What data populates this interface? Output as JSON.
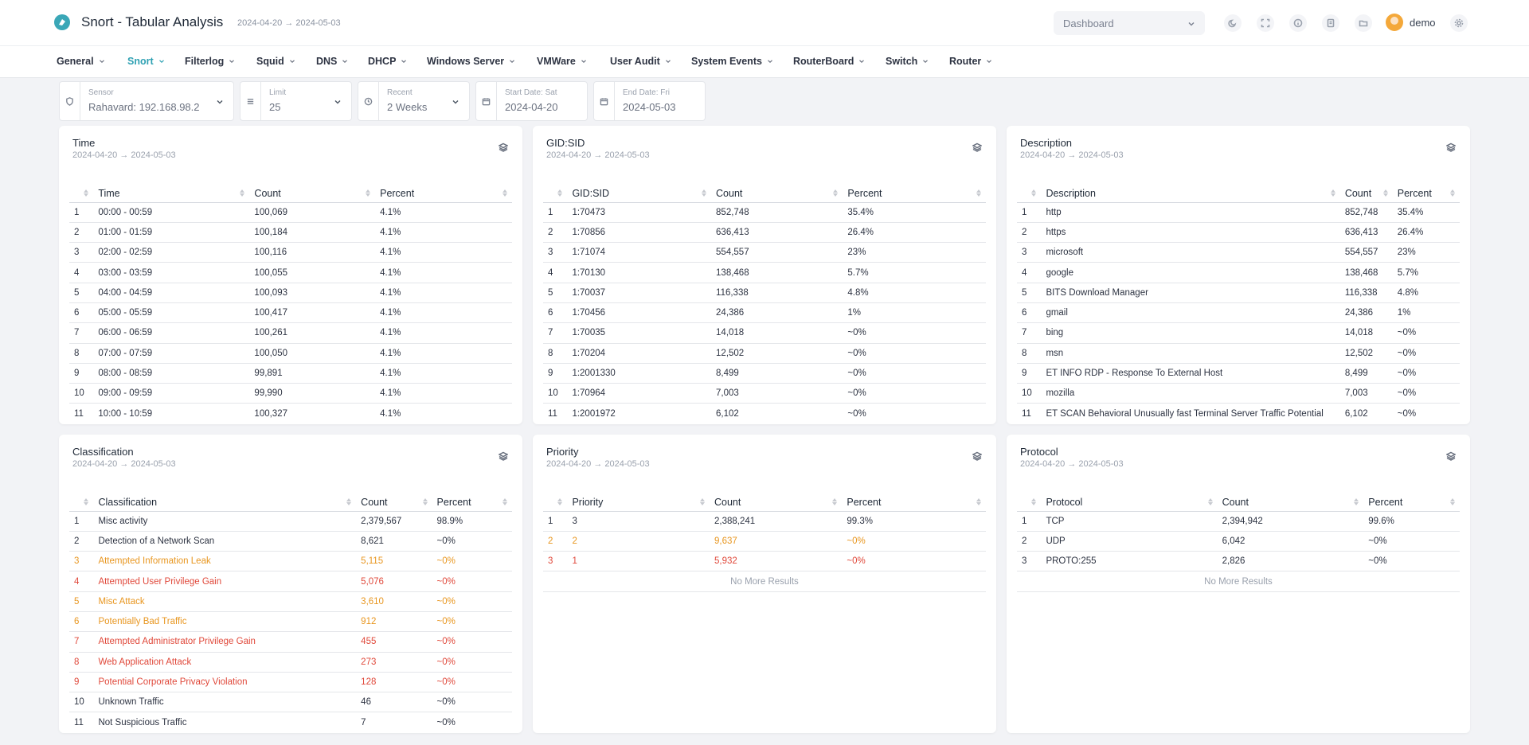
{
  "header": {
    "title": "Snort - Tabular Analysis",
    "range": "2024-04-20 → 2024-05-03",
    "dashboard_select": "Dashboard",
    "username": "demo",
    "icons": [
      "moon-icon",
      "fullscreen-icon",
      "info-icon",
      "document-icon",
      "folder-icon",
      "settings-icon"
    ]
  },
  "nav": [
    {
      "label": "General"
    },
    {
      "label": "Snort",
      "active": true
    },
    {
      "label": "Filterlog"
    },
    {
      "label": "Squid"
    },
    {
      "label": "DNS"
    },
    {
      "label": "DHCP"
    },
    {
      "label": "Windows Server"
    },
    {
      "label": "VMWare"
    },
    {
      "label": "User Audit"
    },
    {
      "label": "System Events"
    },
    {
      "label": "RouterBoard"
    },
    {
      "label": "Switch"
    },
    {
      "label": "Router"
    }
  ],
  "filters": {
    "sensor": {
      "label": "Sensor",
      "value": "Rahavard: 192.168.98.2"
    },
    "limit": {
      "label": "Limit",
      "value": "25"
    },
    "recent": {
      "label": "Recent",
      "value": "2 Weeks"
    },
    "start": {
      "label": "Start Date: Sat",
      "value": "2024-04-20"
    },
    "end": {
      "label": "End Date: Fri",
      "value": "2024-05-03"
    }
  },
  "cards": {
    "time": {
      "title": "Time",
      "range": "2024-04-20 → 2024-05-03",
      "columns": [
        "",
        "Time",
        "Count",
        "Percent"
      ],
      "rows": [
        [
          "1",
          "00:00 - 00:59",
          "100,069",
          "4.1%"
        ],
        [
          "2",
          "01:00 - 01:59",
          "100,184",
          "4.1%"
        ],
        [
          "3",
          "02:00 - 02:59",
          "100,116",
          "4.1%"
        ],
        [
          "4",
          "03:00 - 03:59",
          "100,055",
          "4.1%"
        ],
        [
          "5",
          "04:00 - 04:59",
          "100,093",
          "4.1%"
        ],
        [
          "6",
          "05:00 - 05:59",
          "100,417",
          "4.1%"
        ],
        [
          "7",
          "06:00 - 06:59",
          "100,261",
          "4.1%"
        ],
        [
          "8",
          "07:00 - 07:59",
          "100,050",
          "4.1%"
        ],
        [
          "9",
          "08:00 - 08:59",
          "99,891",
          "4.1%"
        ],
        [
          "10",
          "09:00 - 09:59",
          "99,990",
          "4.1%"
        ],
        [
          "11",
          "10:00 - 10:59",
          "100,327",
          "4.1%"
        ]
      ]
    },
    "gidsid": {
      "title": "GID:SID",
      "range": "2024-04-20 → 2024-05-03",
      "columns": [
        "",
        "GID:SID",
        "Count",
        "Percent"
      ],
      "rows": [
        [
          "1",
          "1:70473",
          "852,748",
          "35.4%"
        ],
        [
          "2",
          "1:70856",
          "636,413",
          "26.4%"
        ],
        [
          "3",
          "1:71074",
          "554,557",
          "23%"
        ],
        [
          "4",
          "1:70130",
          "138,468",
          "5.7%"
        ],
        [
          "5",
          "1:70037",
          "116,338",
          "4.8%"
        ],
        [
          "6",
          "1:70456",
          "24,386",
          "1%"
        ],
        [
          "7",
          "1:70035",
          "14,018",
          "~0%"
        ],
        [
          "8",
          "1:70204",
          "12,502",
          "~0%"
        ],
        [
          "9",
          "1:2001330",
          "8,499",
          "~0%"
        ],
        [
          "10",
          "1:70964",
          "7,003",
          "~0%"
        ],
        [
          "11",
          "1:2001972",
          "6,102",
          "~0%"
        ]
      ]
    },
    "description": {
      "title": "Description",
      "range": "2024-04-20 → 2024-05-03",
      "columns": [
        "",
        "Description",
        "Count",
        "Percent"
      ],
      "rows": [
        [
          "1",
          "http",
          "852,748",
          "35.4%"
        ],
        [
          "2",
          "https",
          "636,413",
          "26.4%"
        ],
        [
          "3",
          "microsoft",
          "554,557",
          "23%"
        ],
        [
          "4",
          "google",
          "138,468",
          "5.7%"
        ],
        [
          "5",
          "BITS Download Manager",
          "116,338",
          "4.8%"
        ],
        [
          "6",
          "gmail",
          "24,386",
          "1%"
        ],
        [
          "7",
          "bing",
          "14,018",
          "~0%"
        ],
        [
          "8",
          "msn",
          "12,502",
          "~0%"
        ],
        [
          "9",
          "ET INFO RDP - Response To External Host",
          "8,499",
          "~0%"
        ],
        [
          "10",
          "mozilla",
          "7,003",
          "~0%"
        ],
        [
          "11",
          "ET SCAN Behavioral Unusually fast Terminal Server Traffic Potential",
          "6,102",
          "~0%"
        ]
      ]
    },
    "classification": {
      "title": "Classification",
      "range": "2024-04-20 → 2024-05-03",
      "columns": [
        "",
        "Classification",
        "Count",
        "Percent"
      ],
      "rows": [
        [
          "1",
          "Misc activity",
          "2,379,567",
          "98.9%",
          ""
        ],
        [
          "2",
          "Detection of a Network Scan",
          "8,621",
          "~0%",
          ""
        ],
        [
          "3",
          "Attempted Information Leak",
          "5,115",
          "~0%",
          "warn"
        ],
        [
          "4",
          "Attempted User Privilege Gain",
          "5,076",
          "~0%",
          "danger"
        ],
        [
          "5",
          "Misc Attack",
          "3,610",
          "~0%",
          "warn"
        ],
        [
          "6",
          "Potentially Bad Traffic",
          "912",
          "~0%",
          "warn"
        ],
        [
          "7",
          "Attempted Administrator Privilege Gain",
          "455",
          "~0%",
          "danger"
        ],
        [
          "8",
          "Web Application Attack",
          "273",
          "~0%",
          "danger"
        ],
        [
          "9",
          "Potential Corporate Privacy Violation",
          "128",
          "~0%",
          "danger"
        ],
        [
          "10",
          "Unknown Traffic",
          "46",
          "~0%",
          ""
        ],
        [
          "11",
          "Not Suspicious Traffic",
          "7",
          "~0%",
          ""
        ]
      ]
    },
    "priority": {
      "title": "Priority",
      "range": "2024-04-20 → 2024-05-03",
      "columns": [
        "",
        "Priority",
        "Count",
        "Percent"
      ],
      "rows": [
        [
          "1",
          "3",
          "2,388,241",
          "99.3%",
          ""
        ],
        [
          "2",
          "2",
          "9,637",
          "~0%",
          "warn"
        ],
        [
          "3",
          "1",
          "5,932",
          "~0%",
          "danger"
        ]
      ],
      "no_more": "No More Results"
    },
    "protocol": {
      "title": "Protocol",
      "range": "2024-04-20 → 2024-05-03",
      "columns": [
        "",
        "Protocol",
        "Count",
        "Percent"
      ],
      "rows": [
        [
          "1",
          "TCP",
          "2,394,942",
          "99.6%",
          ""
        ],
        [
          "2",
          "UDP",
          "6,042",
          "~0%",
          ""
        ],
        [
          "3",
          "PROTO:255",
          "2,826",
          "~0%",
          ""
        ]
      ],
      "no_more": "No More Results"
    }
  },
  "colors": {
    "accent": "#2fa1b3",
    "warn": "#e8961f",
    "danger": "#e0483a"
  }
}
